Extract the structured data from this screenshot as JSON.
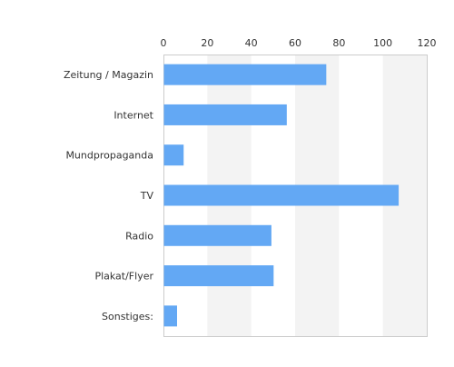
{
  "chart_data": {
    "type": "bar",
    "orientation": "horizontal",
    "categories": [
      "Zeitung / Magazin",
      "Internet",
      "Mundpropaganda",
      "TV",
      "Radio",
      "Plakat/Flyer",
      "Sonstiges:"
    ],
    "values": [
      74,
      56,
      9,
      107,
      49,
      50,
      6
    ],
    "xlim": [
      0,
      120
    ],
    "xticks": [
      0,
      20,
      40,
      60,
      80,
      100,
      120
    ],
    "xaxis_position": "top",
    "grid": "alternating vertical bands",
    "legend": "none",
    "title": "",
    "xlabel": "",
    "ylabel": ""
  },
  "colors": {
    "bar": "#63a8f4",
    "band": "#f3f3f3",
    "frame": "#cccccc",
    "text": "#333333"
  }
}
